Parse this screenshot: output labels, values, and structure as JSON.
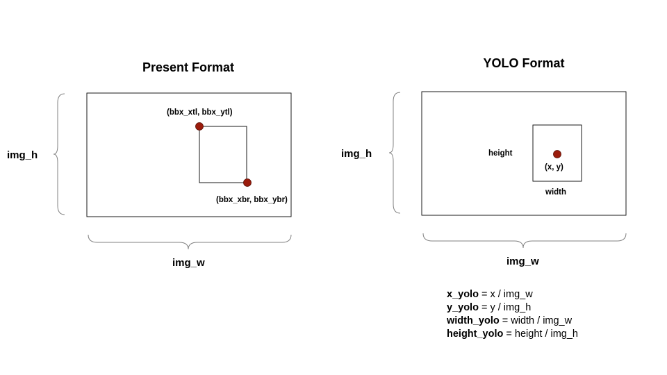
{
  "present": {
    "title": "Present Format",
    "img_h_label": "img_h",
    "img_w_label": "img_w",
    "top_left_label": "(bbx_xtl, bbx_ytl)",
    "bottom_right_label": "(bbx_xbr, bbx_ybr)",
    "point_color": "#9b1c0c"
  },
  "yolo": {
    "title": "YOLO Format",
    "img_h_label": "img_h",
    "img_w_label": "img_w",
    "height_label": "height",
    "width_label": "width",
    "center_label": "(x, y)",
    "point_color": "#9b1c0c"
  },
  "formulas": [
    {
      "var": "x_yolo",
      "expr": " = x / img_w"
    },
    {
      "var": "y_yolo",
      "expr": " = y / img_h"
    },
    {
      "var": "width_yolo",
      "expr": " = width / img_w"
    },
    {
      "var": "height_yolo",
      "expr": " = height / img_h"
    }
  ]
}
